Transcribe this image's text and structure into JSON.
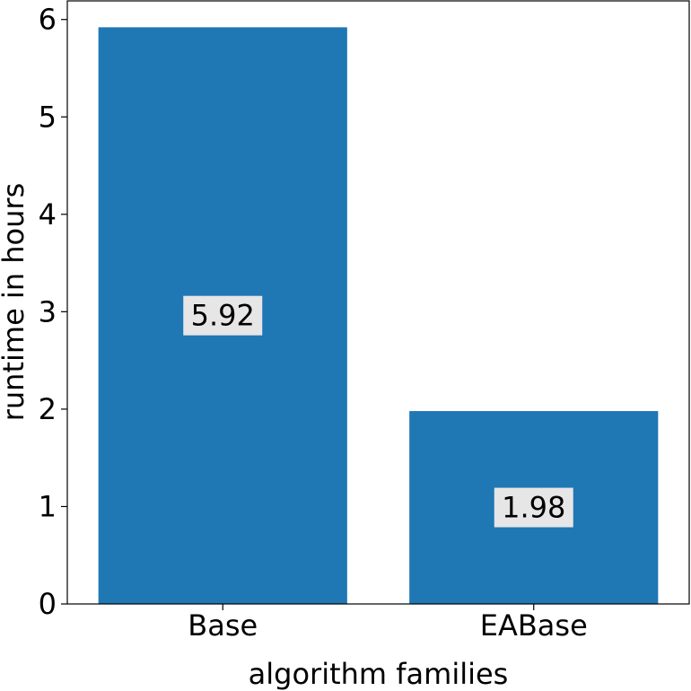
{
  "chart_data": {
    "type": "bar",
    "title": "",
    "xlabel": "algorithm families",
    "ylabel": "runtime in hours",
    "categories": [
      "Base",
      "EABase"
    ],
    "values": [
      5.92,
      1.98
    ],
    "value_labels": [
      "5.92",
      "1.98"
    ],
    "ylim": [
      0,
      6.2
    ],
    "yticks": [
      0,
      1,
      2,
      3,
      4,
      5,
      6
    ],
    "ytick_labels": [
      "0",
      "1",
      "2",
      "3",
      "4",
      "5",
      "6"
    ],
    "grid": false,
    "legend": "none",
    "bar_color": "#1f77b4",
    "label_box_color": "#e6e6e6"
  }
}
